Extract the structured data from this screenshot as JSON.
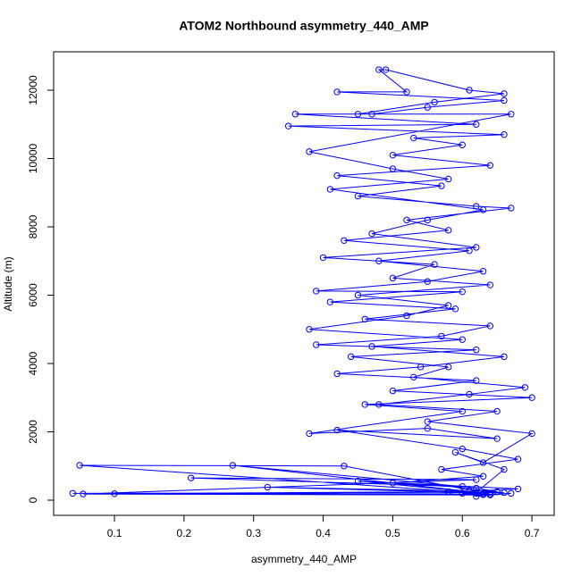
{
  "chart_data": {
    "type": "line",
    "title": "ATOM2 Northbound asymmetry_440_AMP",
    "xlabel": "asymmetry_440_AMP",
    "ylabel": "Altitude (m)",
    "color": "#0000ff",
    "markers": true,
    "xlim": [
      0.0126,
      0.732
    ],
    "ylim": [
      -444,
      13124
    ],
    "xticks": [
      0.1,
      0.2,
      0.3,
      0.4,
      0.5,
      0.6,
      0.7
    ],
    "yticks": [
      0,
      2000,
      4000,
      6000,
      8000,
      10000,
      12000
    ],
    "x": [
      0.62,
      0.64,
      0.05,
      0.43,
      0.61,
      0.66,
      0.04,
      0.63,
      0.1,
      0.58,
      0.64,
      0.055,
      0.62,
      0.21,
      0.6,
      0.27,
      0.63,
      0.32,
      0.61,
      0.68,
      0.45,
      0.62,
      0.66,
      0.59,
      0.63,
      0.7,
      0.55,
      0.65,
      0.48,
      0.61,
      0.69,
      0.53,
      0.58,
      0.44,
      0.62,
      0.39,
      0.57,
      0.64,
      0.46,
      0.59,
      0.41,
      0.6,
      0.39,
      0.55,
      0.63,
      0.48,
      0.61,
      0.43,
      0.58,
      0.52,
      0.67,
      0.62,
      0.45,
      0.57,
      0.42,
      0.64,
      0.5,
      0.6,
      0.53,
      0.66,
      0.35,
      0.62,
      0.36,
      0.47,
      0.55,
      0.66,
      0.42,
      0.52,
      0.48,
      0.49,
      0.61,
      0.66,
      0.56,
      0.45,
      0.67,
      0.38,
      0.5,
      0.58,
      0.41,
      0.63,
      0.55,
      0.47,
      0.62,
      0.4,
      0.56,
      0.5,
      0.64,
      0.45,
      0.58,
      0.52,
      0.38,
      0.6,
      0.47,
      0.66,
      0.54,
      0.42,
      0.62,
      0.5,
      0.7,
      0.46,
      0.6,
      0.38,
      0.55,
      0.65,
      0.42,
      0.6,
      0.68,
      0.57,
      0.63,
      0.5,
      0.62,
      0.65,
      0.6,
      0.63,
      0.67,
      0.62
    ],
    "values": [
      200,
      180,
      1020,
      1000,
      300,
      220,
      200,
      170,
      190,
      250,
      150,
      180,
      600,
      650,
      400,
      1020,
      210,
      380,
      260,
      330,
      560,
      230,
      900,
      1400,
      1100,
      1950,
      2300,
      2600,
      2800,
      3100,
      3300,
      3600,
      3900,
      4200,
      4400,
      4550,
      4800,
      5100,
      5300,
      5600,
      5800,
      6100,
      6120,
      6400,
      6700,
      7000,
      7300,
      7600,
      7900,
      8200,
      8550,
      8600,
      8900,
      9200,
      9500,
      9800,
      10100,
      10400,
      10600,
      10700,
      10950,
      11000,
      11300,
      11300,
      11500,
      11700,
      11950,
      11950,
      12600,
      12600,
      12000,
      11900,
      11650,
      11300,
      11300,
      10200,
      9700,
      9400,
      9100,
      8500,
      8200,
      7800,
      7400,
      7100,
      6900,
      6500,
      6300,
      6000,
      5700,
      5400,
      5000,
      4700,
      4500,
      4200,
      3900,
      3700,
      3500,
      3200,
      3000,
      2800,
      2600,
      1950,
      2100,
      1800,
      2050,
      1500,
      1200,
      900,
      700,
      500,
      350,
      250,
      200,
      160,
      200,
      110
    ]
  }
}
